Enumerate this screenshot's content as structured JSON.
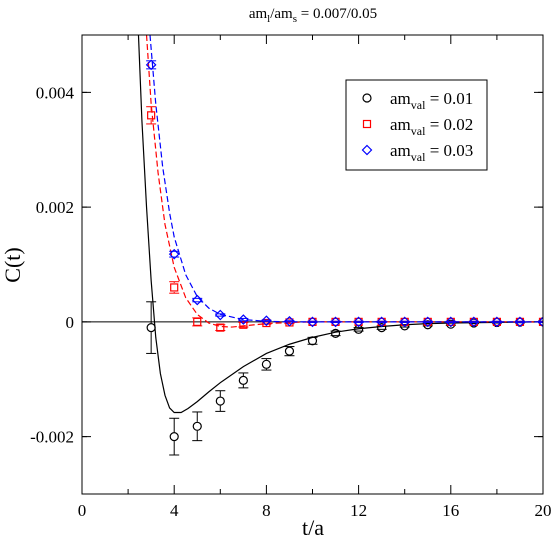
{
  "chart_data": {
    "type": "scatter",
    "title": {
      "base": "am",
      "sub_l": "l",
      "sep": "/am",
      "sub_s": "s",
      "rest": " = 0.007/0.05"
    },
    "xlabel": "t/a",
    "ylabel": "C(t)",
    "xlim": [
      0,
      20
    ],
    "ylim": [
      -0.003,
      0.005
    ],
    "xticks": [
      0,
      4,
      8,
      12,
      16,
      20
    ],
    "yticks": [
      -0.002,
      0,
      0.002,
      0.004
    ],
    "ytick_labels": [
      "-0.002",
      "0",
      "0.002",
      "0.004"
    ],
    "grid": false,
    "legend_position": "top-right",
    "series": [
      {
        "name": {
          "base": "am",
          "sub": "val",
          "rest": " = 0.01"
        },
        "color": "#000000",
        "marker": "circle",
        "x": [
          3,
          4,
          5,
          6,
          7,
          8,
          9,
          10,
          11,
          12,
          13,
          14,
          15,
          16,
          17,
          18,
          19,
          20
        ],
        "y": [
          -0.0001,
          -0.002,
          -0.00182,
          -0.00138,
          -0.00102,
          -0.00074,
          -0.00051,
          -0.00033,
          -0.0002,
          -0.00013,
          -0.0001,
          -7e-05,
          -5e-05,
          -4e-05,
          -2e-05,
          -1e-05,
          -5e-06,
          0
        ],
        "err": [
          0.00045,
          0.00032,
          0.00025,
          0.00018,
          0.00013,
          0.0001,
          8e-05,
          6e-05,
          4e-05,
          3e-05,
          3e-05,
          2e-05,
          2e-05,
          2e-05,
          1e-05,
          1e-05,
          1e-05,
          1e-05
        ],
        "fit": {
          "style": "solid",
          "points": [
            [
              2.45,
              0.005
            ],
            [
              2.6,
              0.0035
            ],
            [
              2.8,
              0.002
            ],
            [
              3.0,
              0.00072
            ],
            [
              3.2,
              -0.00027
            ],
            [
              3.4,
              -0.0009
            ],
            [
              3.6,
              -0.00128
            ],
            [
              3.8,
              -0.0015
            ],
            [
              4.0,
              -0.00158
            ],
            [
              4.3,
              -0.00158
            ],
            [
              4.6,
              -0.00151
            ],
            [
              5.0,
              -0.00139
            ],
            [
              5.5,
              -0.00122
            ],
            [
              6,
              -0.00106
            ],
            [
              7,
              -0.00078
            ],
            [
              8,
              -0.00055
            ],
            [
              9,
              -0.00039
            ],
            [
              10,
              -0.00027
            ],
            [
              11,
              -0.00018
            ],
            [
              12,
              -0.00012
            ],
            [
              13,
              -8e-05
            ],
            [
              14,
              -5e-05
            ],
            [
              15,
              -3e-05
            ],
            [
              16,
              -2e-05
            ],
            [
              18,
              -1e-05
            ],
            [
              20,
              0
            ]
          ]
        }
      },
      {
        "name": {
          "base": "am",
          "sub": "val",
          "rest": " = 0.02"
        },
        "color": "#ff0000",
        "marker": "square",
        "x": [
          3,
          4,
          5,
          6,
          7,
          8,
          9,
          10,
          11,
          12,
          13,
          14,
          15,
          16,
          17,
          18,
          19,
          20
        ],
        "y": [
          0.0036,
          0.0006,
          0.0,
          -0.0001,
          -5e-05,
          -2e-05,
          -1e-05,
          0,
          0,
          0,
          0,
          0,
          0,
          0,
          0,
          0,
          0,
          0
        ],
        "err": [
          0.00015,
          0.0001,
          7e-05,
          5e-05,
          4e-05,
          2e-05,
          2e-05,
          1e-05,
          1e-05,
          1e-05,
          1e-05,
          1e-05,
          1e-05,
          1e-05,
          1e-05,
          1e-05,
          1e-05,
          1e-05
        ],
        "fit": {
          "style": "dashed",
          "points": [
            [
              2.8,
              0.005
            ],
            [
              3.0,
              0.0038
            ],
            [
              3.3,
              0.0026
            ],
            [
              3.6,
              0.0017
            ],
            [
              4.0,
              0.00095
            ],
            [
              4.5,
              0.00042
            ],
            [
              5.0,
              0.00013
            ],
            [
              5.5,
              -2e-05
            ],
            [
              6.0,
              -8e-05
            ],
            [
              6.5,
              -9e-05
            ],
            [
              7,
              -7e-05
            ],
            [
              8,
              -3e-05
            ],
            [
              9,
              -1e-05
            ],
            [
              10,
              0
            ],
            [
              20,
              0
            ]
          ]
        }
      },
      {
        "name": {
          "base": "am",
          "sub": "val",
          "rest": " = 0.03"
        },
        "color": "#0000ff",
        "marker": "diamond",
        "x": [
          3,
          4,
          5,
          6,
          7,
          8,
          9,
          10,
          11,
          12,
          13,
          14,
          15,
          16,
          17,
          18,
          19,
          20
        ],
        "y": [
          0.00448,
          0.00118,
          0.00038,
          0.00012,
          4e-05,
          2e-05,
          1e-05,
          0,
          0,
          0,
          0,
          0,
          0,
          0,
          0,
          0,
          0,
          0
        ],
        "err": [
          7e-05,
          5e-05,
          3e-05,
          2e-05,
          2e-05,
          1e-05,
          1e-05,
          1e-05,
          1e-05,
          1e-05,
          1e-05,
          1e-05,
          1e-05,
          1e-05,
          1e-05,
          1e-05,
          1e-05,
          1e-05
        ],
        "fit": {
          "style": "dashed",
          "points": [
            [
              2.95,
              0.005
            ],
            [
              3.2,
              0.0038
            ],
            [
              3.5,
              0.0027
            ],
            [
              3.8,
              0.0019
            ],
            [
              4.0,
              0.00148
            ],
            [
              4.5,
              0.00082
            ],
            [
              5.0,
              0.00044
            ],
            [
              5.5,
              0.00024
            ],
            [
              6.0,
              0.00013
            ],
            [
              7,
              4e-05
            ],
            [
              8,
              1e-05
            ],
            [
              9,
              0
            ],
            [
              20,
              0
            ]
          ]
        }
      }
    ]
  }
}
